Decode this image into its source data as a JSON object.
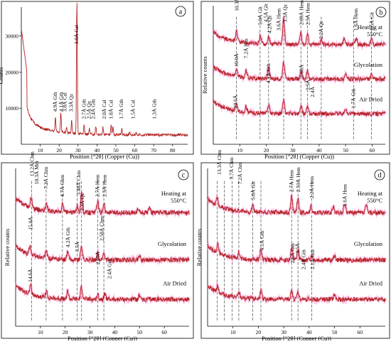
{
  "colors": {
    "trace": "#b22222",
    "noise": "#ff9ad2",
    "axis": "#000000",
    "dashes": "#444444"
  },
  "chart_data": [
    {
      "id": "a",
      "type": "line",
      "panel_letter": "a",
      "xlabel": "Position [°2θ] (Copper (Cu))",
      "ylabel": "Counts",
      "xlim": [
        0,
        88
      ],
      "ylim": [
        0,
        38000
      ],
      "xticks": [
        10,
        20,
        30,
        40,
        50,
        60,
        70,
        80
      ],
      "yticks": [
        10000,
        20000,
        30000
      ],
      "traces": [
        {
          "peaks": [
            {
              "x": 18.0,
              "h": 4000
            },
            {
              "x": 20.9,
              "h": 5500
            },
            {
              "x": 23.9,
              "h": 1500
            },
            {
              "x": 26.6,
              "h": 3600
            },
            {
              "x": 29.4,
              "h": 37000
            },
            {
              "x": 33.2,
              "h": 2300
            },
            {
              "x": 36.0,
              "h": 1500
            },
            {
              "x": 39.4,
              "h": 2200
            },
            {
              "x": 43.2,
              "h": 2000
            },
            {
              "x": 47.5,
              "h": 2500
            },
            {
              "x": 48.5,
              "h": 2400
            },
            {
              "x": 53.2,
              "h": 1600
            },
            {
              "x": 57.4,
              "h": 600
            },
            {
              "x": 60.7,
              "h": 800
            },
            {
              "x": 65.6,
              "h": 300
            }
          ]
        }
      ],
      "annotations": [
        {
          "text": "4.9Å Gth",
          "x": 18.0
        },
        {
          "text": "4.1Å Gth",
          "x": 21.2
        },
        {
          "text": "3.8Å Cal",
          "x": 23.2
        },
        {
          "text": "3.3Å Qz",
          "x": 26.5
        },
        {
          "text": "3.0Å Cal",
          "x": 29.3
        },
        {
          "text": "2.7Å Gth",
          "x": 33.2
        },
        {
          "text": "2.5Å Qz",
          "x": 36.0
        },
        {
          "text": "2.4Å Gth",
          "x": 38.2
        },
        {
          "text": "2.0Å Cal",
          "x": 44.0
        },
        {
          "text": "1.8Å Cal",
          "x": 47.6
        },
        {
          "text": "1.7Å Gth",
          "x": 53.0
        },
        {
          "text": "1.5Å Cal",
          "x": 59.2
        },
        {
          "text": "1.3Å Gth",
          "x": 70.5
        }
      ]
    },
    {
      "id": "b",
      "type": "line",
      "panel_letter": "b",
      "xlabel": "Position [°2θ] (Copper (Cu))",
      "ylabel": "Relative counts",
      "xlim": [
        0,
        65
      ],
      "xticks": [
        10,
        20,
        30,
        40,
        50,
        60
      ],
      "dashed_at": [
        8.7,
        17.7,
        20.9,
        26.6,
        33.1,
        35.6,
        40.8,
        53.0,
        59.8
      ],
      "traces": [
        {
          "label": "Heating at 550°C",
          "base": 0.72,
          "noise": 0.03,
          "peaks": [
            {
              "x": 8.8,
              "h": 0.08
            },
            {
              "x": 17.8,
              "h": 0.06
            },
            {
              "x": 20.9,
              "h": 0.05
            },
            {
              "x": 26.6,
              "h": 0.18
            },
            {
              "x": 33.1,
              "h": 0.09
            },
            {
              "x": 35.6,
              "h": 0.08
            },
            {
              "x": 40.8,
              "h": 0.04
            },
            {
              "x": 49.5,
              "h": 0.04
            },
            {
              "x": 54.0,
              "h": 0.05
            },
            {
              "x": 59.8,
              "h": 0.04
            }
          ]
        },
        {
          "label": "Glycolation",
          "base": 0.47,
          "noise": 0.03,
          "peaks": [
            {
              "x": 8.8,
              "h": 0.05
            },
            {
              "x": 12.4,
              "h": 0.05
            },
            {
              "x": 20.9,
              "h": 0.08
            },
            {
              "x": 26.6,
              "h": 0.12
            },
            {
              "x": 33.2,
              "h": 0.06
            },
            {
              "x": 35.6,
              "h": 0.06
            },
            {
              "x": 50.0,
              "h": 0.04
            },
            {
              "x": 59.8,
              "h": 0.03
            }
          ]
        },
        {
          "label": "Air Dried",
          "base": 0.22,
          "noise": 0.03,
          "peaks": [
            {
              "x": 8.8,
              "h": 0.04
            },
            {
              "x": 12.4,
              "h": 0.04
            },
            {
              "x": 20.9,
              "h": 0.07
            },
            {
              "x": 26.6,
              "h": 0.1
            },
            {
              "x": 33.2,
              "h": 0.05
            },
            {
              "x": 35.6,
              "h": 0.05
            },
            {
              "x": 50.0,
              "h": 0.03
            }
          ]
        }
      ],
      "annotations": [
        {
          "text": "10.3Å Glt",
          "x": 9.0,
          "y": 0.96
        },
        {
          "text": "5.0Å Glt",
          "x": 17.9,
          "y": 0.86
        },
        {
          "text": "4.5Å Glt",
          "x": 20.0,
          "y": 0.88
        },
        {
          "text": "4.2Å Qz",
          "x": 21.3,
          "y": 0.8
        },
        {
          "text": "3.6Å Hem",
          "x": 24.8,
          "y": 0.82
        },
        {
          "text": "3.3Å Qz",
          "x": 27.2,
          "y": 0.88
        },
        {
          "text": "2.69Å Hem",
          "x": 33.4,
          "y": 0.86
        },
        {
          "text": "2.5Å Hem",
          "x": 35.9,
          "y": 0.86
        },
        {
          "text": "2.2Å Qz",
          "x": 40.8,
          "y": 0.76
        },
        {
          "text": "1.6Å Hem",
          "x": 54.0,
          "y": 0.82
        },
        {
          "text": "1.5Å Glt",
          "x": 60.0,
          "y": 0.82
        },
        {
          "text": "10.0Å",
          "x": 8.9,
          "y": 0.56
        },
        {
          "text": "7.2Å Kln",
          "x": 12.5,
          "y": 0.62
        },
        {
          "text": "4.1Å Gth",
          "x": 21.0,
          "y": 0.44
        },
        {
          "text": "2.68Å",
          "x": 33.5,
          "y": 0.48
        },
        {
          "text": "2.5Å",
          "x": 35.9,
          "y": 0.39
        },
        {
          "text": "2.4Å",
          "x": 37.6,
          "y": 0.34
        },
        {
          "text": "1.7Å Gth",
          "x": 53.1,
          "y": 0.26
        },
        {
          "text": "10.6Å",
          "x": 8.4,
          "y": 0.26
        }
      ]
    },
    {
      "id": "c",
      "type": "line",
      "panel_letter": "c",
      "xlabel": "Position [°2θ] (Copper (Cu))",
      "ylabel": "Relative counts",
      "xlim": [
        0,
        70
      ],
      "xticks": [
        10,
        20,
        30,
        40,
        50,
        60
      ],
      "dashed_at": [
        6.5,
        12.3,
        18.9,
        24.8,
        26.6,
        33.1,
        35.6
      ],
      "traces": [
        {
          "label": "Heating at 550°C",
          "base": 0.72,
          "noise": 0.03,
          "peaks": [
            {
              "x": 6.3,
              "h": 0.06
            },
            {
              "x": 12.4,
              "h": 0.05
            },
            {
              "x": 19.0,
              "h": 0.05
            },
            {
              "x": 24.9,
              "h": 0.04
            },
            {
              "x": 26.6,
              "h": 0.12
            },
            {
              "x": 33.1,
              "h": 0.07
            },
            {
              "x": 35.6,
              "h": 0.06
            },
            {
              "x": 49.5,
              "h": 0.03
            },
            {
              "x": 54.0,
              "h": 0.04
            }
          ]
        },
        {
          "label": "Glycolation",
          "base": 0.42,
          "noise": 0.03,
          "peaks": [
            {
              "x": 5.8,
              "h": 0.06
            },
            {
              "x": 12.4,
              "h": 0.05
            },
            {
              "x": 21.0,
              "h": 0.05
            },
            {
              "x": 26.6,
              "h": 0.09
            },
            {
              "x": 33.1,
              "h": 0.04
            },
            {
              "x": 35.6,
              "h": 0.04
            },
            {
              "x": 50.0,
              "h": 0.03
            }
          ]
        },
        {
          "label": "Air Dried",
          "base": 0.17,
          "noise": 0.03,
          "peaks": [
            {
              "x": 6.0,
              "h": 0.06
            },
            {
              "x": 12.4,
              "h": 0.04
            },
            {
              "x": 21.0,
              "h": 0.05
            },
            {
              "x": 26.6,
              "h": 0.08
            },
            {
              "x": 33.1,
              "h": 0.03
            },
            {
              "x": 36.0,
              "h": 0.04
            },
            {
              "x": 50.0,
              "h": 0.03
            }
          ]
        }
      ],
      "annotations": [
        {
          "text": "13.2Å Chm",
          "x": 6.7,
          "y": 0.95
        },
        {
          "text": "10.3Å Mnt",
          "x": 8.6,
          "y": 0.9
        },
        {
          "text": "7.2Å Chm",
          "x": 12.3,
          "y": 0.87
        },
        {
          "text": "4.7Å Chm",
          "x": 19.0,
          "y": 0.82
        },
        {
          "text": "3.48Å Chm",
          "x": 25.6,
          "y": 0.83
        },
        {
          "text": "3.3Å Qz",
          "x": 27.0,
          "y": 0.73
        },
        {
          "text": "2.7Å Hem",
          "x": 33.2,
          "y": 0.82
        },
        {
          "text": "2.5Å Hem",
          "x": 36.0,
          "y": 0.82
        },
        {
          "text": "15.0Å",
          "x": 6.2,
          "y": 0.61
        },
        {
          "text": "4.2Å Gth",
          "x": 21.3,
          "y": 0.5
        },
        {
          "text": "3.5Å",
          "x": 24.9,
          "y": 0.47
        },
        {
          "text": "2.58Å Chm",
          "x": 34.8,
          "y": 0.54
        },
        {
          "text": "2.69Å",
          "x": 33.3,
          "y": 0.39
        },
        {
          "text": "2.4Å Gth",
          "x": 38.0,
          "y": 0.3
        },
        {
          "text": "14.6Å",
          "x": 6.0,
          "y": 0.28
        }
      ]
    },
    {
      "id": "d",
      "type": "line",
      "panel_letter": "d",
      "xlabel": "Position [°2θ] (Copper (Cu))",
      "ylabel": "Relative counts",
      "xlim": [
        0,
        70
      ],
      "xticks": [
        10,
        20,
        30,
        40,
        50,
        60
      ],
      "dashed_at": [
        3.8,
        6.6,
        9.7,
        12.3,
        17.8,
        21.0,
        33.1,
        35.6,
        41.0
      ],
      "traces": [
        {
          "label": "Heating at 550°C",
          "base": 0.72,
          "noise": 0.03,
          "peaks": [
            {
              "x": 3.8,
              "h": 0.05
            },
            {
              "x": 17.8,
              "h": 0.04
            },
            {
              "x": 33.1,
              "h": 0.1
            },
            {
              "x": 35.6,
              "h": 0.09
            },
            {
              "x": 40.8,
              "h": 0.04
            },
            {
              "x": 49.5,
              "h": 0.04
            },
            {
              "x": 54.0,
              "h": 0.06
            },
            {
              "x": 62.5,
              "h": 0.05
            }
          ]
        },
        {
          "label": "Glycolation",
          "base": 0.42,
          "noise": 0.03,
          "peaks": [
            {
              "x": 4.0,
              "h": 0.05
            },
            {
              "x": 12.4,
              "h": 0.04
            },
            {
              "x": 21.0,
              "h": 0.06
            },
            {
              "x": 33.1,
              "h": 0.07
            },
            {
              "x": 35.6,
              "h": 0.06
            },
            {
              "x": 41.0,
              "h": 0.03
            },
            {
              "x": 50.0,
              "h": 0.03
            }
          ]
        },
        {
          "label": "Air Dried",
          "base": 0.17,
          "noise": 0.03,
          "peaks": [
            {
              "x": 4.0,
              "h": 0.04
            },
            {
              "x": 12.4,
              "h": 0.03
            },
            {
              "x": 21.0,
              "h": 0.05
            },
            {
              "x": 33.1,
              "h": 0.05
            },
            {
              "x": 35.6,
              "h": 0.05
            },
            {
              "x": 50.0,
              "h": 0.03
            }
          ]
        }
      ],
      "annotations": [
        {
          "text": "13.3Å Chm",
          "x": 4.8,
          "y": 0.96
        },
        {
          "text": "9.7Å Chm",
          "x": 9.5,
          "y": 0.93
        },
        {
          "text": "7.2Å Chm",
          "x": 12.9,
          "y": 0.9
        },
        {
          "text": "5.0Å Glt",
          "x": 18.0,
          "y": 0.8
        },
        {
          "text": "2.7Å Hem",
          "x": 33.2,
          "y": 0.85
        },
        {
          "text": "2.51Å Hem",
          "x": 35.9,
          "y": 0.85
        },
        {
          "text": "2.2Å Hem",
          "x": 41.2,
          "y": 0.81
        },
        {
          "text": "1.6Å Hem",
          "x": 54.2,
          "y": 0.76
        },
        {
          "text": "4.1Å Gth",
          "x": 21.5,
          "y": 0.48
        },
        {
          "text": "2.6Å Gth",
          "x": 33.6,
          "y": 0.4
        },
        {
          "text": "2.5Å",
          "x": 35.6,
          "y": 0.46
        },
        {
          "text": "2.4Å Gth",
          "x": 37.9,
          "y": 0.36
        },
        {
          "text": "2.1Å Gth",
          "x": 41.5,
          "y": 0.36
        }
      ]
    }
  ]
}
